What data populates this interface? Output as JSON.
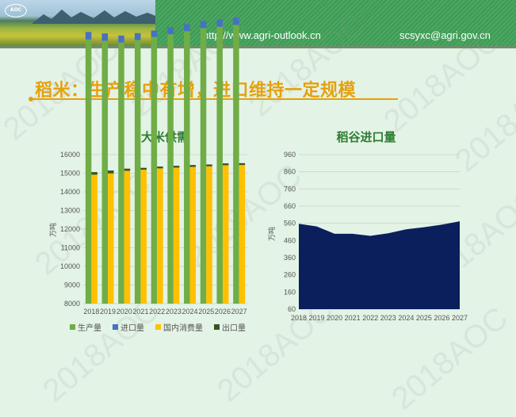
{
  "header": {
    "logo": "AOC",
    "url": "http://www.agri-outlook.cn",
    "email": "scsyxc@agri.gov.cn"
  },
  "page_title": "稻米：生产稳中有增，进口维持一定规模",
  "watermark": "2018AOC",
  "chart_data": [
    {
      "type": "bar",
      "title": "大米供需",
      "ylabel": "万吨",
      "ylim": [
        8000,
        16000
      ],
      "yticks": [
        8000,
        9000,
        10000,
        11000,
        12000,
        13000,
        14000,
        15000,
        16000
      ],
      "categories": [
        "2018",
        "2019",
        "2020",
        "2021",
        "2022",
        "2023",
        "2024",
        "2025",
        "2026",
        "2027"
      ],
      "legend_position": "bottom",
      "grid": true,
      "series": [
        {
          "name": "生产量",
          "stack": "supply",
          "color": "#70ad47",
          "values": [
            14180,
            14110,
            14020,
            14150,
            14320,
            14460,
            14630,
            14790,
            14870,
            14960
          ]
        },
        {
          "name": "进口量",
          "stack": "supply",
          "color": "#4472c4",
          "values": [
            400,
            395,
            370,
            370,
            340,
            370,
            370,
            380,
            390,
            400
          ]
        },
        {
          "name": "国内消费量",
          "stack": "use",
          "color": "#ffc000",
          "values": [
            14920,
            14990,
            15130,
            15190,
            15260,
            15300,
            15340,
            15370,
            15430,
            15440
          ]
        },
        {
          "name": "出口量",
          "stack": "use",
          "color": "#375623",
          "values": [
            140,
            155,
            115,
            100,
            100,
            100,
            100,
            100,
            100,
            100
          ]
        }
      ]
    },
    {
      "type": "area",
      "title": "稻谷进口量",
      "ylabel": "万吨",
      "ylim": [
        60,
        960
      ],
      "yticks": [
        60,
        160,
        260,
        360,
        460,
        560,
        660,
        760,
        860,
        960
      ],
      "grid": true,
      "categories": [
        "2018",
        "2019",
        "2020",
        "2021",
        "2022",
        "2023",
        "2024",
        "2025",
        "2026",
        "2027"
      ],
      "series": [
        {
          "color": "#0b1f5c",
          "values": [
            557,
            542,
            499,
            499,
            487,
            502,
            525,
            537,
            552,
            572
          ]
        }
      ]
    }
  ]
}
